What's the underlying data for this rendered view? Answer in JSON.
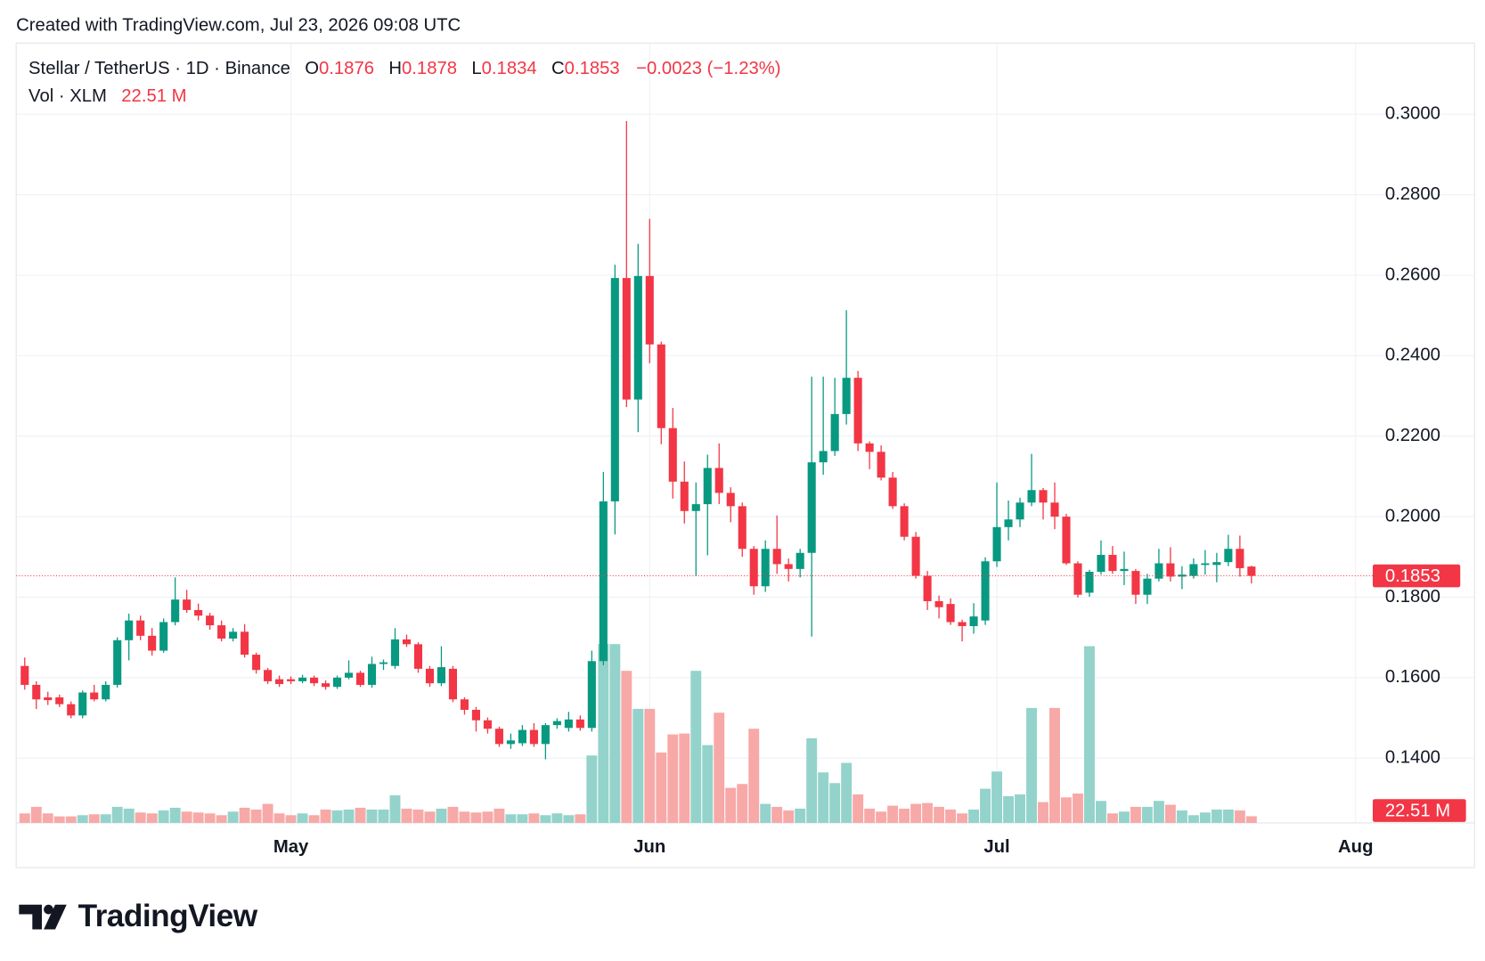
{
  "header": "Created with TradingView.com, Jul 23, 2026 09:08 UTC",
  "logo": "TradingView",
  "chart_data": {
    "type": "candlestick",
    "title": "Stellar / TetherUS · 1D · Binance",
    "ohlc_letters": [
      "O",
      "H",
      "L",
      "C"
    ],
    "change": "−0.0023 (−1.23%)",
    "volume_title": "Vol · XLM",
    "up_color": "#089981",
    "down_color": "#f23645",
    "volume_up_color": "#93d3cb",
    "volume_down_color": "#f7a9a7",
    "open": [
      0.1629,
      0.1582,
      0.1551,
      0.1551,
      0.1534,
      0.1506,
      0.1563,
      0.1546,
      0.1582,
      0.1693,
      0.1742,
      0.1704,
      0.1667,
      0.1738,
      0.1794,
      0.1768,
      0.1754,
      0.173,
      0.1697,
      0.1714,
      0.1657,
      0.1619,
      0.1596,
      0.1596,
      0.1591,
      0.16,
      0.1586,
      0.1577,
      0.16,
      0.1612,
      0.1582,
      0.1634,
      0.1629,
      0.1695,
      0.1683,
      0.1622,
      0.1586,
      0.1622,
      0.1546,
      0.152,
      0.1494,
      0.1473,
      0.1435,
      0.1437,
      0.147,
      0.1435,
      0.1482,
      0.1475,
      0.1496,
      0.1475,
      0.1641,
      0.2038,
      0.2593,
      0.2291,
      0.2598,
      0.2428,
      0.222,
      0.2087,
      0.2014,
      0.2031,
      0.2121,
      0.2059,
      0.2026,
      0.192,
      0.1827,
      0.192,
      0.1882,
      0.187,
      0.191,
      0.2135,
      0.2163,
      0.2255,
      0.2345,
      0.2182,
      0.2161,
      0.2097,
      0.2026,
      0.195,
      0.1853,
      0.179,
      0.1783,
      0.1738,
      0.1728,
      0.1742,
      0.1889,
      0.1974,
      0.1993,
      0.2035,
      0.2066,
      0.2035,
      0.2,
      0.1884,
      0.1811,
      0.1863,
      0.1905,
      0.1865,
      0.1865,
      0.1806,
      0.1846,
      0.1884,
      0.1851,
      0.1853,
      0.188,
      0.188,
      0.1887,
      0.192,
      0.1876
    ],
    "high": [
      0.165,
      0.1591,
      0.1565,
      0.1558,
      0.1541,
      0.1568,
      0.1582,
      0.1591,
      0.17,
      0.1759,
      0.1754,
      0.1723,
      0.1747,
      0.1849,
      0.1818,
      0.1784,
      0.1761,
      0.1742,
      0.1723,
      0.1733,
      0.1662,
      0.1624,
      0.1605,
      0.1603,
      0.1607,
      0.1605,
      0.1593,
      0.1605,
      0.1643,
      0.1617,
      0.1652,
      0.1645,
      0.1723,
      0.1707,
      0.1688,
      0.1629,
      0.1678,
      0.1629,
      0.1551,
      0.1527,
      0.1501,
      0.1478,
      0.1461,
      0.1482,
      0.1487,
      0.1487,
      0.1499,
      0.1515,
      0.1506,
      0.1667,
      0.2111,
      0.2626,
      0.2983,
      0.2678,
      0.274,
      0.2435,
      0.227,
      0.2137,
      0.2085,
      0.2154,
      0.2182,
      0.2073,
      0.2035,
      0.1927,
      0.1941,
      0.2003,
      0.1896,
      0.192,
      0.2348,
      0.2348,
      0.2345,
      0.2513,
      0.2362,
      0.2187,
      0.2177,
      0.2111,
      0.2033,
      0.1962,
      0.1865,
      0.1804,
      0.1797,
      0.1744,
      0.1785,
      0.1899,
      0.2085,
      0.204,
      0.2047,
      0.2156,
      0.2071,
      0.2085,
      0.2007,
      0.1889,
      0.1868,
      0.1941,
      0.1927,
      0.1913,
      0.187,
      0.1858,
      0.192,
      0.1924,
      0.1877,
      0.1896,
      0.1917,
      0.191,
      0.1955,
      0.1953,
      0.1878
    ],
    "low": [
      0.157,
      0.1522,
      0.1532,
      0.1527,
      0.1499,
      0.1499,
      0.1541,
      0.1541,
      0.1575,
      0.1643,
      0.1693,
      0.1655,
      0.1662,
      0.173,
      0.1761,
      0.1742,
      0.1719,
      0.169,
      0.169,
      0.165,
      0.161,
      0.1584,
      0.1577,
      0.1584,
      0.1586,
      0.1579,
      0.157,
      0.1572,
      0.1596,
      0.1577,
      0.1575,
      0.1619,
      0.1622,
      0.1676,
      0.1612,
      0.1577,
      0.1579,
      0.1539,
      0.1508,
      0.1466,
      0.1461,
      0.1428,
      0.1423,
      0.143,
      0.1428,
      0.1397,
      0.1473,
      0.1466,
      0.1468,
      0.1466,
      0.1631,
      0.1956,
      0.2272,
      0.221,
      0.2381,
      0.218,
      0.2045,
      0.1983,
      0.1852,
      0.1904,
      0.2031,
      0.1986,
      0.19,
      0.1806,
      0.1813,
      0.1858,
      0.1839,
      0.1849,
      0.1702,
      0.2104,
      0.2151,
      0.2229,
      0.2163,
      0.2118,
      0.209,
      0.2019,
      0.1941,
      0.1846,
      0.1768,
      0.1747,
      0.1731,
      0.169,
      0.1709,
      0.1731,
      0.1875,
      0.1941,
      0.1974,
      0.2026,
      0.1993,
      0.1969,
      0.188,
      0.1799,
      0.1801,
      0.1856,
      0.1858,
      0.183,
      0.1783,
      0.1783,
      0.1839,
      0.1839,
      0.182,
      0.1846,
      0.1856,
      0.1837,
      0.1877,
      0.1851,
      0.1834
    ],
    "close": [
      0.1582,
      0.1546,
      0.1544,
      0.1534,
      0.1506,
      0.1563,
      0.1546,
      0.1582,
      0.1693,
      0.1742,
      0.1704,
      0.1667,
      0.1738,
      0.1794,
      0.1768,
      0.1754,
      0.173,
      0.1697,
      0.1714,
      0.1657,
      0.1619,
      0.1591,
      0.1584,
      0.1591,
      0.16,
      0.1586,
      0.1577,
      0.16,
      0.1612,
      0.1582,
      0.1634,
      0.1638,
      0.1695,
      0.1683,
      0.1622,
      0.1586,
      0.1626,
      0.1546,
      0.152,
      0.1494,
      0.1473,
      0.1435,
      0.1444,
      0.147,
      0.1435,
      0.1482,
      0.1492,
      0.1496,
      0.1475,
      0.1641,
      0.2038,
      0.2593,
      0.2291,
      0.2598,
      0.2428,
      0.222,
      0.2087,
      0.2014,
      0.2031,
      0.2121,
      0.2059,
      0.2026,
      0.192,
      0.1827,
      0.192,
      0.1882,
      0.187,
      0.191,
      0.2135,
      0.2163,
      0.2255,
      0.2345,
      0.2182,
      0.2161,
      0.2097,
      0.2026,
      0.195,
      0.1853,
      0.179,
      0.1775,
      0.1738,
      0.1728,
      0.1752,
      0.1889,
      0.1974,
      0.1993,
      0.2035,
      0.2066,
      0.2035,
      0.2,
      0.1884,
      0.1806,
      0.1863,
      0.1905,
      0.1865,
      0.187,
      0.1806,
      0.1846,
      0.1884,
      0.1851,
      0.1856,
      0.1882,
      0.1884,
      0.1887,
      0.192,
      0.1872,
      0.1853
    ],
    "volume": [
      32,
      54,
      32,
      22,
      22,
      26,
      29,
      29,
      54,
      48,
      35,
      32,
      42,
      51,
      38,
      35,
      32,
      26,
      38,
      51,
      45,
      64,
      32,
      26,
      32,
      26,
      45,
      42,
      45,
      51,
      45,
      45,
      93,
      48,
      45,
      38,
      48,
      54,
      38,
      35,
      38,
      48,
      29,
      29,
      32,
      26,
      32,
      26,
      29,
      227,
      602,
      602,
      512,
      384,
      384,
      237,
      298,
      301,
      512,
      262,
      371,
      118,
      131,
      317,
      64,
      54,
      42,
      48,
      285,
      170,
      134,
      202,
      96,
      48,
      38,
      58,
      48,
      64,
      67,
      54,
      45,
      32,
      45,
      115,
      173,
      90,
      96,
      387,
      70,
      387,
      86,
      99,
      595,
      74,
      32,
      38,
      54,
      54,
      74,
      61,
      42,
      26,
      35,
      45,
      45,
      42,
      22.51
    ],
    "last_volume_label": "22.51 M",
    "xlim": [
      -0.74,
      115
    ],
    "xticks": [
      {
        "value": 23,
        "label": "May"
      },
      {
        "value": 54,
        "label": "Jun"
      },
      {
        "value": 84,
        "label": "Jul"
      },
      {
        "value": 115,
        "label": "Aug"
      }
    ],
    "ylim": [
      0.1239,
      0.3177
    ],
    "yticks": [
      {
        "value": 0.14,
        "label": "0.1400"
      },
      {
        "value": 0.16,
        "label": "0.1600"
      },
      {
        "value": 0.18,
        "label": "0.1800"
      },
      {
        "value": 0.2,
        "label": "0.2000"
      },
      {
        "value": 0.22,
        "label": "0.2200"
      },
      {
        "value": 0.24,
        "label": "0.2400"
      },
      {
        "value": 0.26,
        "label": "0.2600"
      },
      {
        "value": 0.28,
        "label": "0.2800"
      },
      {
        "value": 0.3,
        "label": "0.3000"
      }
    ],
    "grid": true
  }
}
